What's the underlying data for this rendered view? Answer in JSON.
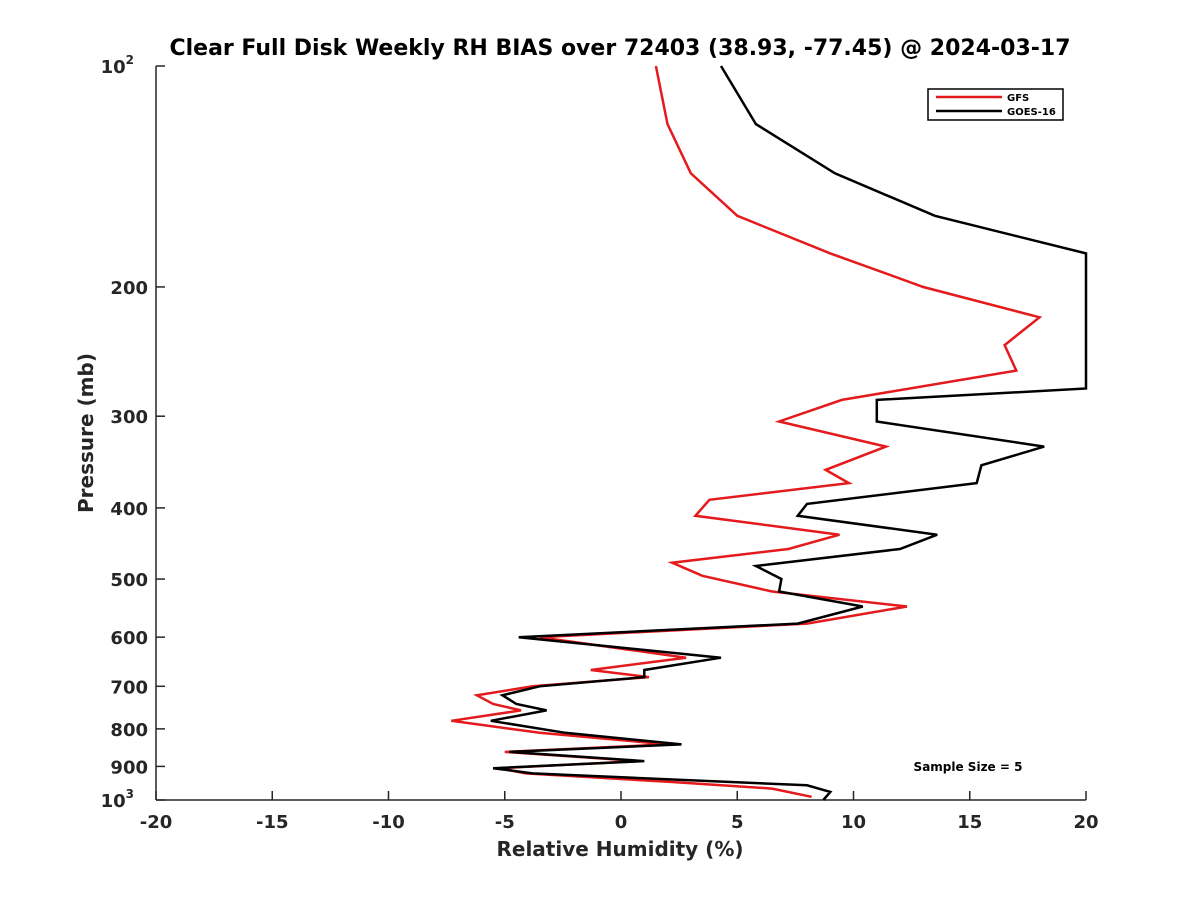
{
  "chart_data": {
    "type": "line",
    "title": "Clear Full Disk Weekly RH BIAS over 72403 (38.93, -77.45) @ 2024-03-17",
    "xlabel": "Relative Humidity (%)",
    "ylabel": "Pressure (mb)",
    "xlim": [
      -20,
      20
    ],
    "ylim": [
      100,
      1000
    ],
    "y_scale": "log",
    "y_reversed": true,
    "grid": false,
    "x_ticks": [
      -20,
      -15,
      -10,
      -5,
      0,
      5,
      10,
      15,
      20
    ],
    "x_tick_labels": [
      "-20",
      "-15",
      "-10",
      "-5",
      "0",
      "5",
      "10",
      "15",
      "20"
    ],
    "y_ticks": [
      {
        "value": 100,
        "label": "10",
        "sup": "2"
      },
      {
        "value": 200,
        "label": "200",
        "sup": ""
      },
      {
        "value": 300,
        "label": "300",
        "sup": ""
      },
      {
        "value": 400,
        "label": "400",
        "sup": ""
      },
      {
        "value": 500,
        "label": "500",
        "sup": ""
      },
      {
        "value": 600,
        "label": "600",
        "sup": ""
      },
      {
        "value": 700,
        "label": "700",
        "sup": ""
      },
      {
        "value": 800,
        "label": "800",
        "sup": ""
      },
      {
        "value": 900,
        "label": "900",
        "sup": ""
      },
      {
        "value": 1000,
        "label": "10",
        "sup": "3"
      }
    ],
    "legend_position": "top-right",
    "annotation": "Sample Size = 5",
    "series": [
      {
        "name": "GFS",
        "color": "#e41a1c",
        "points": [
          [
            1.5,
            100
          ],
          [
            2.0,
            120
          ],
          [
            3.0,
            140
          ],
          [
            5.0,
            160
          ],
          [
            9.0,
            180
          ],
          [
            13.0,
            200
          ],
          [
            18.0,
            220
          ],
          [
            16.5,
            240
          ],
          [
            17.0,
            260
          ],
          [
            9.5,
            285
          ],
          [
            6.8,
            305
          ],
          [
            11.4,
            330
          ],
          [
            8.8,
            355
          ],
          [
            9.8,
            370
          ],
          [
            3.8,
            390
          ],
          [
            3.2,
            410
          ],
          [
            9.4,
            435
          ],
          [
            7.2,
            455
          ],
          [
            2.2,
            475
          ],
          [
            3.5,
            495
          ],
          [
            6.5,
            520
          ],
          [
            12.3,
            545
          ],
          [
            8.0,
            575
          ],
          [
            -3.5,
            600
          ],
          [
            2.8,
            640
          ],
          [
            -1.3,
            665
          ],
          [
            1.2,
            680
          ],
          [
            -3.8,
            700
          ],
          [
            -6.2,
            720
          ],
          [
            -5.5,
            740
          ],
          [
            -4.3,
            755
          ],
          [
            -7.3,
            780
          ],
          [
            -3.5,
            810
          ],
          [
            2.0,
            840
          ],
          [
            -5.0,
            860
          ],
          [
            0.8,
            885
          ],
          [
            -5.2,
            905
          ],
          [
            -4.1,
            920
          ],
          [
            2.2,
            945
          ],
          [
            6.5,
            965
          ],
          [
            8.2,
            990
          ]
        ]
      },
      {
        "name": "GOES-16",
        "color": "#000000",
        "points": [
          [
            4.3,
            100
          ],
          [
            5.8,
            120
          ],
          [
            9.2,
            140
          ],
          [
            13.5,
            160
          ],
          [
            20.0,
            180
          ],
          [
            20.0,
            275
          ],
          [
            11.0,
            285
          ],
          [
            11.0,
            305
          ],
          [
            18.2,
            330
          ],
          [
            15.5,
            350
          ],
          [
            15.3,
            370
          ],
          [
            8.0,
            395
          ],
          [
            7.6,
            410
          ],
          [
            13.6,
            435
          ],
          [
            12.0,
            455
          ],
          [
            5.8,
            480
          ],
          [
            6.9,
            500
          ],
          [
            6.8,
            520
          ],
          [
            10.4,
            545
          ],
          [
            7.6,
            575
          ],
          [
            -4.4,
            600
          ],
          [
            4.3,
            640
          ],
          [
            1.0,
            665
          ],
          [
            1.0,
            680
          ],
          [
            -3.5,
            700
          ],
          [
            -5.1,
            720
          ],
          [
            -4.5,
            740
          ],
          [
            -3.2,
            755
          ],
          [
            -5.6,
            780
          ],
          [
            -2.4,
            810
          ],
          [
            2.6,
            840
          ],
          [
            -4.8,
            860
          ],
          [
            1.0,
            885
          ],
          [
            -5.5,
            905
          ],
          [
            -3.8,
            920
          ],
          [
            8.0,
            955
          ],
          [
            9.0,
            975
          ],
          [
            8.7,
            1000
          ]
        ]
      }
    ]
  }
}
